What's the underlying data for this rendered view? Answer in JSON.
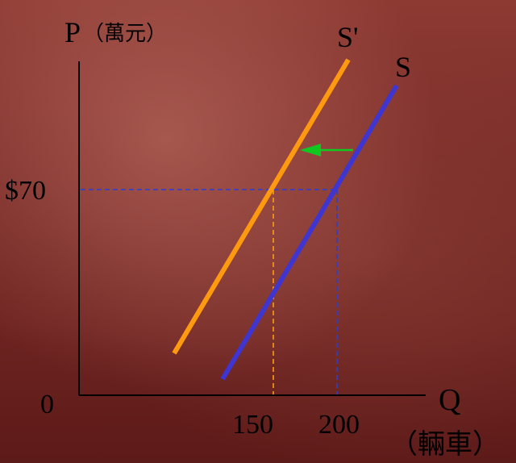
{
  "colors": {
    "background": "#7a2c27",
    "axis": "#000000",
    "original_supply": "#3f35d0",
    "shifted_supply": "#ff9a10",
    "arrow": "#10c820",
    "guide_blue": "#2a3fd8",
    "guide_orange": "#ff9a10"
  },
  "axes": {
    "y_label": "P",
    "y_unit": "（萬元）",
    "x_label": "Q",
    "x_unit": "（輛車）",
    "origin": "0",
    "price_tick": "$70",
    "qty_tick_1": "150",
    "qty_tick_2": "200"
  },
  "curves": {
    "original_label": "S",
    "shifted_label": "S'"
  },
  "arrow": {
    "direction": "left",
    "icon": "arrow-left-icon"
  }
}
